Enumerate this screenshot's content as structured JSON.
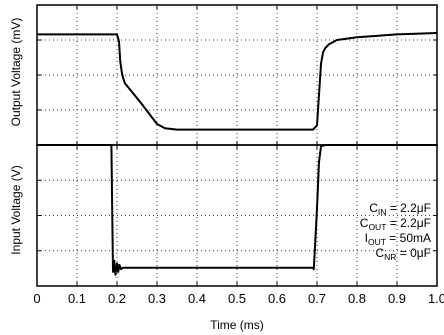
{
  "chart_data": {
    "type": "line",
    "xlabel": "Time (ms)",
    "xlim": [
      0,
      1.0
    ],
    "x_ticks": [
      "0",
      "0.1",
      "0.2",
      "0.3",
      "0.4",
      "0.5",
      "0.6",
      "0.7",
      "0.8",
      "0.9",
      "1.0"
    ],
    "grid": true,
    "panels": [
      {
        "ylabel": "Output Voltage (mV)",
        "ylim": [
          0,
          1
        ],
        "y_divisions": 4,
        "series": [
          {
            "x": [
              0,
              0.2,
              0.205,
              0.208,
              0.212,
              0.215,
              0.22,
              0.26,
              0.3,
              0.32,
              0.35,
              0.45,
              0.55,
              0.65,
              0.69,
              0.7,
              0.705,
              0.71,
              0.715,
              0.72,
              0.73,
              0.75,
              0.8,
              0.9,
              1.0
            ],
            "y": [
              0.79,
              0.79,
              0.74,
              0.6,
              0.52,
              0.48,
              0.44,
              0.3,
              0.15,
              0.12,
              0.11,
              0.11,
              0.11,
              0.11,
              0.11,
              0.14,
              0.36,
              0.58,
              0.66,
              0.69,
              0.72,
              0.75,
              0.77,
              0.79,
              0.8
            ]
          }
        ]
      },
      {
        "ylabel": "Input Voltage (V)",
        "ylim": [
          0,
          1
        ],
        "y_divisions": 4,
        "series": [
          {
            "x": [
              0,
              0.18,
              0.186,
              0.19,
              0.193,
              0.196,
              0.2,
              0.203,
              0.206,
              0.21,
              0.215,
              0.3,
              0.5,
              0.69,
              0.692,
              0.7,
              0.705,
              0.71,
              0.72,
              0.8,
              1.0
            ],
            "y": [
              1.0,
              1.0,
              1.0,
              0.1,
              0.18,
              0.08,
              0.16,
              0.1,
              0.15,
              0.12,
              0.13,
              0.13,
              0.13,
              0.13,
              0.12,
              0.55,
              0.88,
              0.99,
              1.0,
              1.0,
              1.0
            ]
          }
        ]
      }
    ],
    "annotations": [
      {
        "main": "C",
        "sub": "IN",
        "rest": " = 2.2μF"
      },
      {
        "main": "C",
        "sub": "OUT",
        "rest": " = 2.2μF"
      },
      {
        "main": "I",
        "sub": "OUT",
        "rest": " = 50mA"
      },
      {
        "main": "C",
        "sub": "NR",
        "rest": " = 0μF"
      }
    ]
  }
}
